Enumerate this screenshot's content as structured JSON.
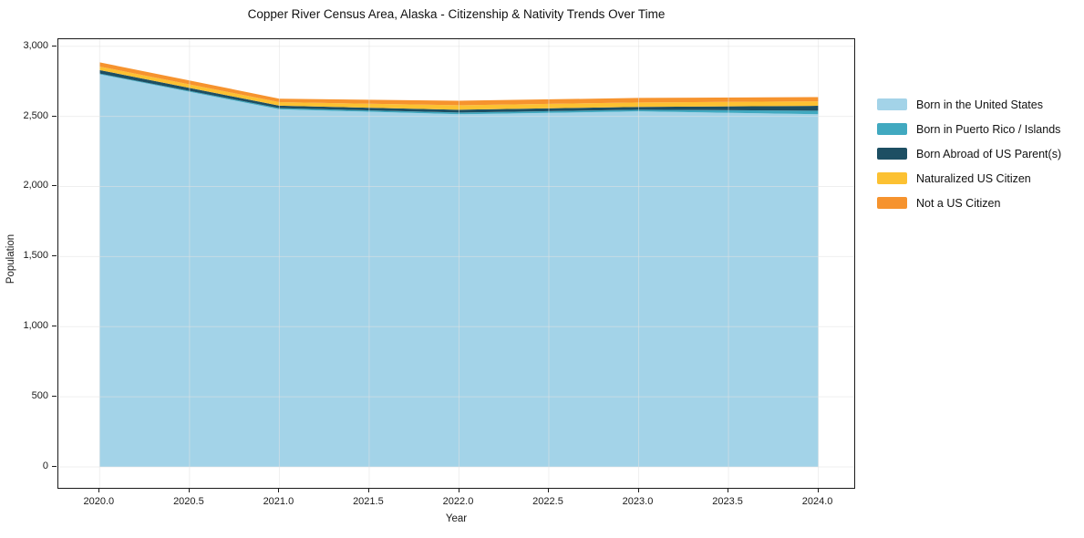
{
  "page": {
    "background": "#ffffff"
  },
  "chart_data": {
    "type": "area",
    "stacked": true,
    "title": "Copper River Census Area, Alaska - Citizenship & Nativity Trends Over Time",
    "xlabel": "Year",
    "ylabel": "Population",
    "x": [
      2020,
      2021,
      2022,
      2023,
      2024
    ],
    "series": [
      {
        "name": "Born in the United States",
        "color": "#a3d3e8",
        "values": [
          2800,
          2550,
          2515,
          2535,
          2515
        ]
      },
      {
        "name": "Born in Puerto Rico / Islands",
        "color": "#41a9c0",
        "values": [
          5,
          8,
          12,
          12,
          25
        ]
      },
      {
        "name": "Born Abroad of US Parent(s)",
        "color": "#1d4f63",
        "values": [
          25,
          18,
          20,
          20,
          35
        ]
      },
      {
        "name": "Naturalized US Citizen",
        "color": "#fcc132",
        "values": [
          25,
          25,
          32,
          32,
          32
        ]
      },
      {
        "name": "Not a US Citizen",
        "color": "#f6932e",
        "values": [
          30,
          25,
          32,
          32,
          30
        ]
      }
    ],
    "stack_totals": [
      2885,
      2626,
      2611,
      2631,
      2637
    ],
    "x_ticks": {
      "values": [
        2020.0,
        2020.5,
        2021.0,
        2021.5,
        2022.0,
        2022.5,
        2023.0,
        2023.5,
        2024.0
      ],
      "labels": [
        "2020.0",
        "2020.5",
        "2021.0",
        "2021.5",
        "2022.0",
        "2022.5",
        "2023.0",
        "2023.5",
        "2024.0"
      ]
    },
    "y_ticks": {
      "values": [
        0,
        500,
        1000,
        1500,
        2000,
        2500,
        3000
      ],
      "labels": [
        "0",
        "500",
        "1,000",
        "1,500",
        "2,000",
        "2,500",
        "3,000"
      ]
    },
    "xlim": [
      2019.77,
      2024.2
    ],
    "ylim": [
      -150,
      3050
    ],
    "grid": true,
    "gridline_color": "rgba(225,225,225,0.55)",
    "spine_color": "#1a1a1a",
    "legend_position": "right"
  }
}
